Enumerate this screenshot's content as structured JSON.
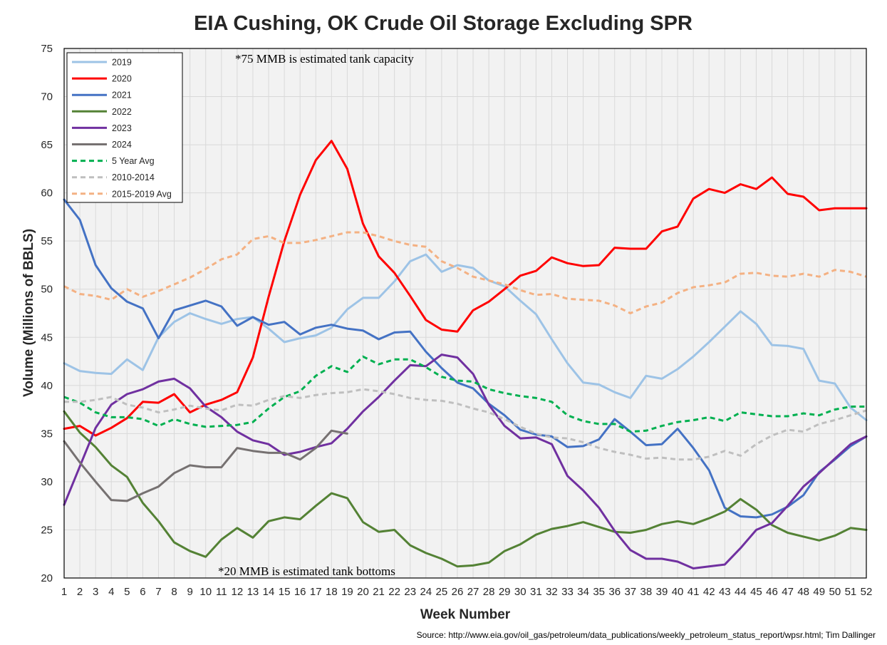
{
  "chart_data": {
    "type": "line",
    "title": "EIA Cushing, OK Crude Oil Storage Excluding SPR",
    "xlabel": "Week Number",
    "ylabel": "Volume (Millions of BBLS)",
    "xlim": [
      1,
      52
    ],
    "ylim": [
      20,
      75
    ],
    "yticks": [
      20,
      25,
      30,
      35,
      40,
      45,
      50,
      55,
      60,
      65,
      70,
      75
    ],
    "grid": true,
    "legend_position": "top-left",
    "annotations": [
      {
        "text": "*75 MMB is estimated tank capacity",
        "x": 13,
        "y": 73.0
      },
      {
        "text": "*20 MMB is estimated tank bottoms",
        "x": 11.9,
        "y": 20.7
      }
    ],
    "source": "Source: http://www.eia.gov/oil_gas/petroleum/data_publications/weekly_petroleum_status_report/wpsr.html; Tim Dallinger",
    "series": [
      {
        "name": "2019",
        "color": "#9DC3E6",
        "dash": false,
        "values": [
          42.3,
          41.5,
          41.3,
          41.2,
          42.7,
          41.6,
          45.0,
          46.6,
          47.5,
          46.9,
          46.4,
          46.9,
          47.1,
          45.9,
          44.5,
          44.9,
          45.2,
          46.0,
          47.9,
          49.1,
          49.1,
          50.8,
          52.9,
          53.6,
          51.8,
          52.5,
          52.2,
          50.9,
          50.3,
          48.8,
          47.4,
          44.8,
          42.3,
          40.3,
          40.1,
          39.3,
          38.7,
          41.0,
          40.7,
          41.7,
          43.0,
          44.5,
          46.1,
          47.7,
          46.4,
          44.2,
          44.1,
          43.8,
          40.5,
          40.2,
          37.7,
          36.4
        ]
      },
      {
        "name": "2020",
        "color": "#FF0000",
        "dash": false,
        "values": [
          35.5,
          35.8,
          34.8,
          35.6,
          36.6,
          38.3,
          38.2,
          39.1,
          37.2,
          38.0,
          38.5,
          39.3,
          42.9,
          49.2,
          55.0,
          59.8,
          63.4,
          65.4,
          62.5,
          56.8,
          53.4,
          51.7,
          49.3,
          46.8,
          45.8,
          45.6,
          47.8,
          48.7,
          50.0,
          51.4,
          51.9,
          53.3,
          52.7,
          52.4,
          52.5,
          54.3,
          54.2,
          54.2,
          56.0,
          56.5,
          59.4,
          60.4,
          60.0,
          60.9,
          60.4,
          61.6,
          59.9,
          59.6,
          58.2,
          58.4,
          58.4,
          58.4
        ]
      },
      {
        "name": "2021",
        "color": "#4472C4",
        "dash": false,
        "values": [
          59.3,
          57.2,
          52.5,
          50.1,
          48.7,
          48.0,
          44.9,
          47.8,
          48.3,
          48.8,
          48.2,
          46.2,
          47.1,
          46.3,
          46.6,
          45.3,
          46.0,
          46.3,
          45.9,
          45.7,
          44.8,
          45.5,
          45.6,
          43.5,
          41.8,
          40.3,
          39.7,
          38.1,
          36.9,
          35.4,
          34.9,
          34.7,
          33.6,
          33.7,
          34.4,
          36.5,
          35.2,
          33.8,
          33.9,
          35.5,
          33.5,
          31.2,
          27.3,
          26.4,
          26.3,
          26.6,
          27.4,
          28.6,
          31.0,
          32.3,
          33.7,
          34.7
        ]
      },
      {
        "name": "2022",
        "color": "#548235",
        "dash": false,
        "values": [
          37.3,
          35.1,
          33.6,
          31.7,
          30.5,
          27.8,
          25.9,
          23.7,
          22.8,
          22.2,
          24.0,
          25.2,
          24.2,
          25.9,
          26.3,
          26.1,
          27.5,
          28.8,
          28.3,
          25.8,
          24.8,
          25.0,
          23.4,
          22.6,
          22.0,
          21.2,
          21.3,
          21.6,
          22.8,
          23.5,
          24.5,
          25.1,
          25.4,
          25.8,
          25.3,
          24.8,
          24.7,
          25.0,
          25.6,
          25.9,
          25.6,
          26.2,
          26.9,
          28.2,
          27.1,
          25.5,
          24.7,
          24.3,
          23.9,
          24.4,
          25.2,
          25.0
        ]
      },
      {
        "name": "2023",
        "color": "#7030A0",
        "dash": false,
        "values": [
          27.6,
          31.6,
          35.6,
          38.0,
          39.1,
          39.6,
          40.4,
          40.7,
          39.7,
          37.8,
          36.7,
          35.2,
          34.3,
          33.9,
          32.8,
          33.1,
          33.6,
          34.0,
          35.5,
          37.3,
          38.8,
          40.5,
          42.1,
          42.0,
          43.2,
          42.9,
          41.2,
          38.0,
          35.8,
          34.5,
          34.6,
          33.9,
          30.6,
          29.1,
          27.3,
          24.9,
          22.9,
          22.0,
          22.0,
          21.7,
          21.0,
          21.2,
          21.4,
          23.1,
          25.0,
          25.7,
          27.5,
          29.5,
          30.9,
          32.4,
          33.9,
          34.7
        ]
      },
      {
        "name": "2024",
        "color": "#767171",
        "dash": false,
        "values": [
          34.2,
          32.0,
          30.0,
          28.1,
          28.0,
          28.8,
          29.5,
          30.9,
          31.7,
          31.5,
          31.5,
          33.5,
          33.2,
          33.0,
          33.0,
          32.3,
          33.5,
          35.3,
          35.0
        ]
      },
      {
        "name": "5 Year Avg",
        "color": "#00B050",
        "dash": true,
        "values": [
          38.8,
          38.2,
          37.2,
          36.7,
          36.7,
          36.5,
          35.8,
          36.5,
          36.0,
          35.7,
          35.8,
          35.9,
          36.2,
          37.6,
          38.8,
          39.4,
          41.0,
          42.0,
          41.4,
          43.0,
          42.2,
          42.7,
          42.7,
          41.9,
          40.9,
          40.5,
          40.4,
          39.6,
          39.2,
          38.9,
          38.7,
          38.3,
          36.9,
          36.3,
          36.0,
          36.0,
          35.2,
          35.3,
          35.8,
          36.2,
          36.4,
          36.7,
          36.3,
          37.2,
          37.0,
          36.8,
          36.8,
          37.1,
          36.9,
          37.5,
          37.8,
          37.8
        ]
      },
      {
        "name": "2010-2014",
        "color": "#BFBFBF",
        "dash": true,
        "values": [
          38.3,
          38.3,
          38.5,
          38.8,
          38.0,
          37.7,
          37.2,
          37.5,
          37.9,
          37.6,
          37.4,
          38.0,
          37.9,
          38.5,
          38.9,
          38.7,
          39.0,
          39.2,
          39.3,
          39.6,
          39.4,
          39.1,
          38.7,
          38.5,
          38.4,
          38.1,
          37.6,
          37.2,
          36.5,
          35.7,
          35.0,
          34.6,
          34.5,
          34.1,
          33.5,
          33.1,
          32.8,
          32.4,
          32.5,
          32.3,
          32.3,
          32.6,
          33.2,
          32.7,
          33.9,
          34.8,
          35.4,
          35.2,
          36.0,
          36.4,
          36.9,
          37.4
        ]
      },
      {
        "name": "2015-2019 Avg",
        "color": "#F4B183",
        "dash": true,
        "values": [
          50.3,
          49.5,
          49.3,
          48.9,
          50.0,
          49.2,
          49.8,
          50.5,
          51.2,
          52.1,
          53.1,
          53.6,
          55.2,
          55.5,
          54.8,
          54.8,
          55.1,
          55.5,
          55.9,
          55.9,
          55.5,
          55.0,
          54.6,
          54.4,
          52.9,
          52.2,
          51.3,
          50.9,
          50.5,
          49.9,
          49.4,
          49.5,
          49.0,
          48.9,
          48.8,
          48.3,
          47.5,
          48.2,
          48.6,
          49.6,
          50.2,
          50.4,
          50.7,
          51.6,
          51.7,
          51.4,
          51.3,
          51.6,
          51.3,
          52.0,
          51.8,
          51.3
        ]
      }
    ]
  }
}
